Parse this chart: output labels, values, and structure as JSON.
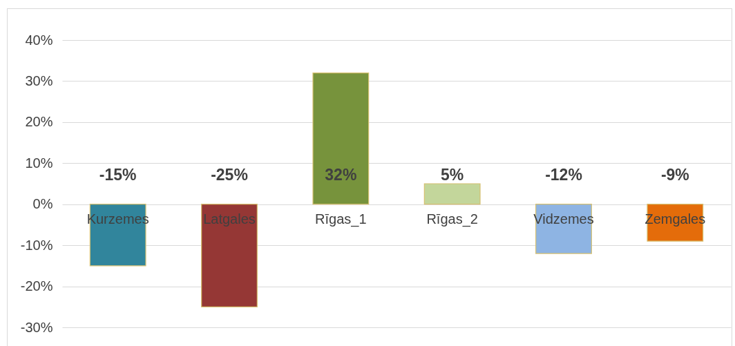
{
  "chart_data": {
    "type": "bar",
    "categories": [
      "Kurzemes",
      "Latgales",
      "Rīgas_1",
      "Rīgas_2",
      "Vidzemes",
      "Zemgales"
    ],
    "values": [
      -15,
      -25,
      32,
      5,
      -12,
      -9
    ],
    "colors": [
      "#31859c",
      "#953735",
      "#77933c",
      "#c3d69b",
      "#8eb4e3",
      "#e46c0a"
    ],
    "value_labels": [
      "-15%",
      "-25%",
      "32%",
      "5%",
      "-12%",
      "-9%"
    ],
    "ylim": [
      -30,
      40
    ],
    "yticks": [
      {
        "value": -30,
        "label": "-30%"
      },
      {
        "value": -20,
        "label": "-20%"
      },
      {
        "value": -10,
        "label": "-10%"
      },
      {
        "value": 0,
        "label": "0%"
      },
      {
        "value": 10,
        "label": "10%"
      },
      {
        "value": 20,
        "label": "20%"
      },
      {
        "value": 30,
        "label": "30%"
      },
      {
        "value": 40,
        "label": "40%"
      }
    ],
    "grid": true
  }
}
